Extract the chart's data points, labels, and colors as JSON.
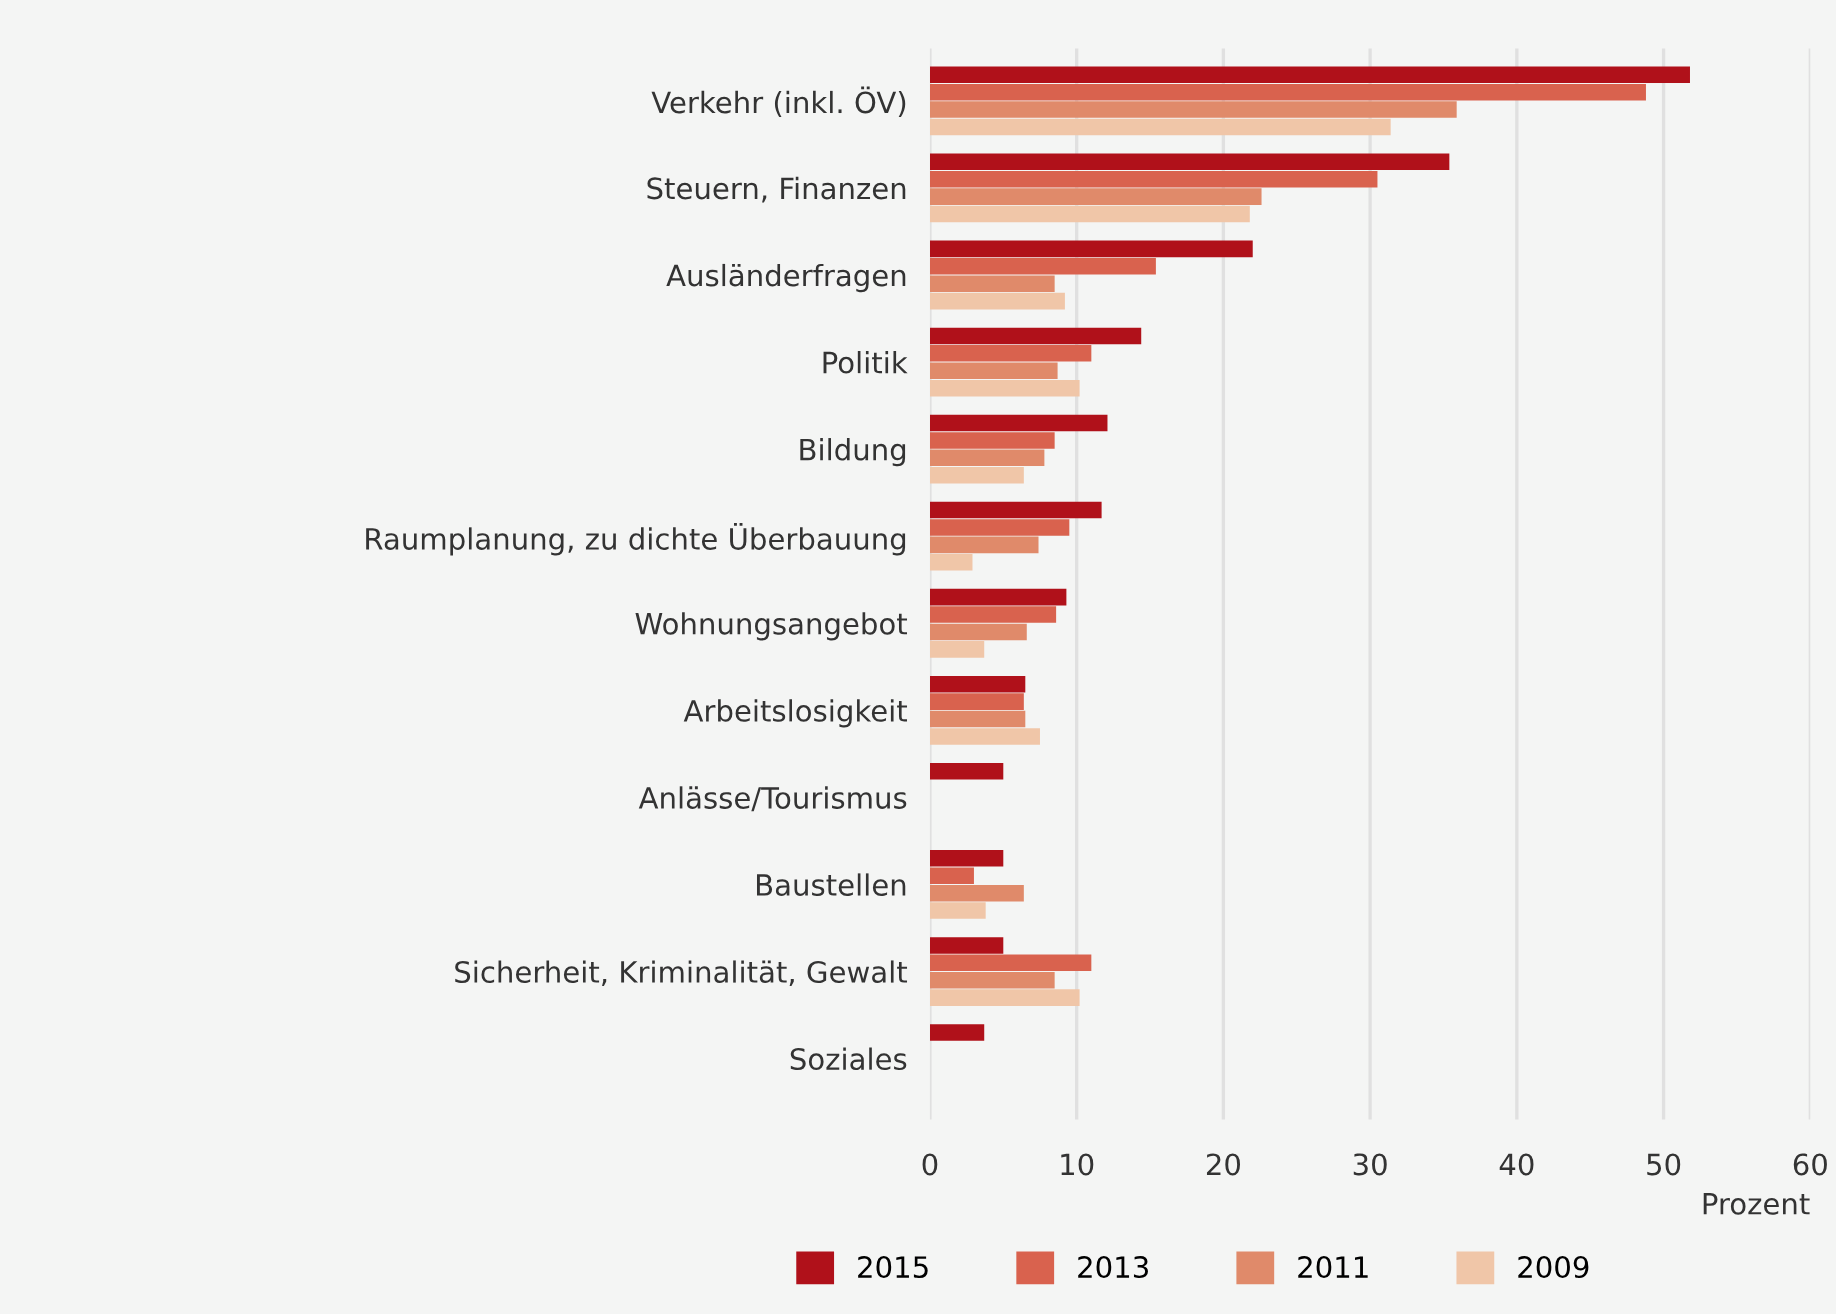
{
  "chart_data": {
    "type": "bar",
    "orientation": "horizontal",
    "xlabel": "Prozent",
    "categories": [
      "Verkehr (inkl. ÖV)",
      "Steuern, Finanzen",
      "Ausländerfragen",
      "Politik",
      "Bildung",
      "Raumplanung, zu dichte Überbauung",
      "Wohnungsangebot",
      "Arbeitslosigkeit",
      "Anlässe/Tourismus",
      "Baustellen",
      "Sicherheit, Kriminalität, Gewalt",
      "Soziales"
    ],
    "series": [
      {
        "name": "2015",
        "color": "#b0111a",
        "values": [
          51.8,
          35.4,
          22.0,
          14.4,
          12.1,
          11.7,
          9.3,
          6.5,
          5.0,
          5.0,
          5.0,
          3.7
        ]
      },
      {
        "name": "2013",
        "color": "#d9624e",
        "values": [
          48.8,
          30.5,
          15.4,
          11.0,
          8.5,
          9.5,
          8.6,
          6.4,
          null,
          3.0,
          11.0,
          null
        ]
      },
      {
        "name": "2011",
        "color": "#e08a6a",
        "values": [
          35.9,
          22.6,
          8.5,
          8.7,
          7.8,
          7.4,
          6.6,
          6.5,
          null,
          6.4,
          8.5,
          null
        ]
      },
      {
        "name": "2009",
        "color": "#f0c6a8",
        "values": [
          31.4,
          21.8,
          9.2,
          10.2,
          6.4,
          2.9,
          3.7,
          7.5,
          null,
          3.8,
          10.2,
          null
        ]
      }
    ],
    "xlim": [
      0,
      60
    ],
    "xticks": [
      0,
      10,
      20,
      30,
      40,
      50,
      60
    ],
    "grid": "x",
    "legend": "bottom"
  }
}
